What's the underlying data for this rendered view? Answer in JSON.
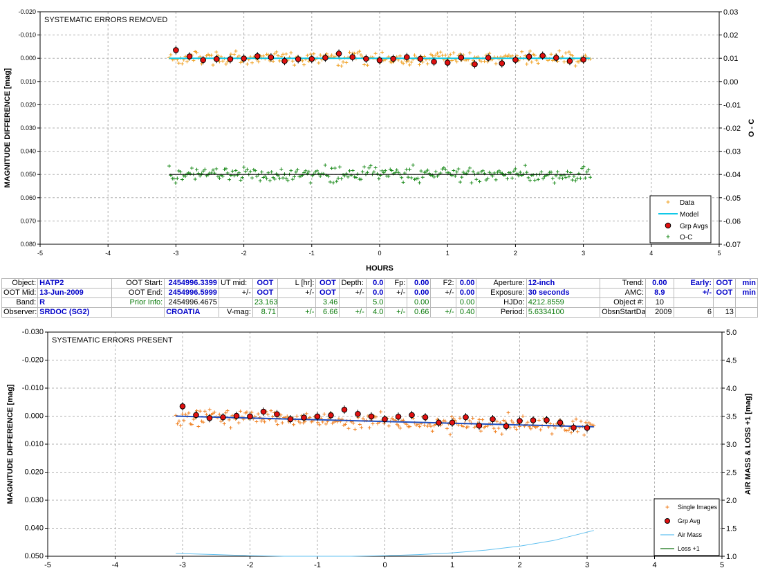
{
  "chart_data": [
    {
      "type": "scatter",
      "title": "SYSTEMATIC ERRORS REMOVED",
      "xlabel": "HOURS",
      "ylabel": "MAGNITUDE DIFFERENCE [mag]",
      "y2label": "O - C",
      "xlim": [
        -5,
        5
      ],
      "ylim": [
        -0.02,
        0.08
      ],
      "y_inverted": true,
      "y2lim": [
        -0.07,
        0.03
      ],
      "x_ticks": [
        "-5",
        "-4",
        "-3",
        "-2",
        "-1",
        "0",
        "1",
        "2",
        "3",
        "4",
        "5"
      ],
      "y_ticks": [
        "-0.020",
        "-0.010",
        "0.000",
        "0.010",
        "0.020",
        "0.030",
        "0.040",
        "0.050",
        "0.060",
        "0.070",
        "0.080"
      ],
      "y2_ticks": [
        "-0.07",
        "-0.06",
        "-0.05",
        "-0.04",
        "-0.03",
        "-0.02",
        "-0.01",
        "0.00",
        "0.01",
        "0.02",
        "0.03"
      ],
      "grid": true,
      "legend_position": "bottom-right",
      "series": [
        {
          "name": "Data",
          "style": "plus",
          "color": "#f0a020",
          "x_range": [
            -3.1,
            3.1
          ],
          "center": 0.0,
          "scatter": 0.003,
          "count": 260
        },
        {
          "name": "Model",
          "style": "line",
          "color": "#10c8e8",
          "x": [
            -3.1,
            3.1
          ],
          "y": [
            0.0,
            0.0
          ]
        },
        {
          "name": "Grp Avgs",
          "style": "dot",
          "color": "#e01010",
          "x": [
            -3.0,
            -2.8,
            -2.6,
            -2.4,
            -2.2,
            -2.0,
            -1.8,
            -1.6,
            -1.4,
            -1.2,
            -1.0,
            -0.8,
            -0.6,
            -0.4,
            -0.2,
            0.0,
            0.2,
            0.4,
            0.6,
            0.8,
            1.0,
            1.2,
            1.4,
            1.6,
            1.8,
            2.0,
            2.2,
            2.4,
            2.6,
            2.8,
            3.0
          ],
          "y": [
            -0.0035,
            -0.0008,
            0.0008,
            0.0003,
            0.0004,
            0.0001,
            -0.0009,
            -0.0004,
            0.0012,
            0.0004,
            0.0003,
            -0.0002,
            -0.002,
            -0.0005,
            0.0002,
            0.0009,
            0.0002,
            -0.0005,
            0.0002,
            0.0015,
            0.0019,
            -0.0003,
            0.0026,
            -0.0002,
            0.0022,
            0.0007,
            -0.0007,
            -0.0011,
            -0.0002,
            0.0012,
            0.0006
          ]
        },
        {
          "name": "O-C",
          "style": "plus",
          "color": "#1a8a1a",
          "x_range": [
            -3.1,
            3.1
          ],
          "center": 0.05,
          "scatter": 0.0032,
          "count": 260
        }
      ],
      "reference_line": {
        "y": 0.05,
        "color": "#000000"
      }
    },
    {
      "type": "scatter",
      "title": "SYSTEMATIC ERRORS PRESENT",
      "xlabel": "",
      "ylabel": "MAGNITUDE DIFFERENCE [mag]",
      "y2label": "AIR MASS & LOSS +1 [mag]",
      "xlim": [
        -5,
        5
      ],
      "ylim": [
        -0.03,
        0.05
      ],
      "y_inverted": true,
      "y2lim": [
        1.0,
        5.0
      ],
      "x_ticks": [
        "-5",
        "-4",
        "-3",
        "-2",
        "-1",
        "0",
        "1",
        "2",
        "3",
        "4",
        "5"
      ],
      "y_ticks": [
        "-0.030",
        "-0.020",
        "-0.010",
        "0.000",
        "0.010",
        "0.020",
        "0.030",
        "0.040",
        "0.050"
      ],
      "y2_ticks": [
        "1.0",
        "1.5",
        "2.0",
        "2.5",
        "3.0",
        "3.5",
        "4.0",
        "4.5",
        "5.0"
      ],
      "grid": true,
      "legend_position": "bottom-right",
      "series": [
        {
          "name": "Single Images",
          "style": "plus",
          "color": "#f08020",
          "x_range": [
            -3.1,
            3.1
          ],
          "trend": [
            0.0,
            0.0038
          ],
          "scatter": 0.0028,
          "count": 260
        },
        {
          "name": "Grp Avg",
          "style": "dot",
          "color": "#e01010",
          "x": [
            -3.0,
            -2.8,
            -2.6,
            -2.4,
            -2.2,
            -2.0,
            -1.8,
            -1.6,
            -1.4,
            -1.2,
            -1.0,
            -0.8,
            -0.6,
            -0.4,
            -0.2,
            0.0,
            0.2,
            0.4,
            0.6,
            0.8,
            1.0,
            1.2,
            1.4,
            1.6,
            1.8,
            2.0,
            2.2,
            2.4,
            2.6,
            2.8,
            3.0
          ],
          "y": [
            -0.0035,
            -0.0004,
            0.0007,
            0.0004,
            -0.0001,
            0.0001,
            -0.0016,
            -0.0007,
            0.0011,
            0.0005,
            0.0001,
            -0.0003,
            -0.0023,
            -0.0008,
            0.0001,
            0.0011,
            0.0002,
            -0.0004,
            0.0004,
            0.0023,
            0.0023,
            0.0004,
            0.0034,
            0.0011,
            0.0036,
            0.0017,
            0.0015,
            0.0014,
            0.0023,
            0.0041,
            0.0042
          ]
        },
        {
          "name": "Air Mass",
          "style": "line",
          "color": "#60c0f0",
          "axis": "y2",
          "x": [
            -3.1,
            -2.5,
            -2.0,
            -1.5,
            -1.0,
            -0.5,
            0.0,
            0.5,
            1.0,
            1.5,
            2.0,
            2.5,
            3.1
          ],
          "y": [
            1.05,
            1.03,
            1.01,
            1.0,
            1.0,
            1.0,
            1.01,
            1.03,
            1.06,
            1.11,
            1.18,
            1.28,
            1.46
          ]
        },
        {
          "name": "Loss +1",
          "style": "line",
          "color": "#107010",
          "axis": "y2"
        }
      ],
      "trend_line": {
        "x": [
          -3.1,
          3.1
        ],
        "y": [
          0.0,
          0.0038
        ],
        "color": "#2050c0"
      }
    }
  ],
  "info": {
    "row1": [
      "Object:",
      "HATP2",
      "OOT Start:",
      "2454996.3399",
      "UT mid:",
      "OOT",
      "L [hr]:",
      "OOT",
      "Depth:",
      "0.0",
      "Fp:",
      "0.00",
      "F2:",
      "0.00",
      "Aperture:",
      "12-inch",
      "Trend:",
      "0.00",
      "Early:",
      "OOT",
      "min"
    ],
    "row2": [
      "OOT Mid:",
      "13-Jun-2009",
      "OOT End:",
      "2454996.5999",
      "+/-",
      "OOT",
      "+/-",
      "OOT",
      "+/-",
      "0.0",
      "+/-",
      "0.00",
      "+/-",
      "0.00",
      "Exposure:",
      "30 seconds",
      "AMC:",
      "8.9",
      "+/-",
      "OOT",
      "min"
    ],
    "row3": [
      "Band:",
      "R",
      "Prior Info:",
      "2454996.4675",
      "",
      "23.163",
      "",
      "3.46",
      "",
      "5.0",
      "",
      "0.00",
      "",
      "0.00",
      "HJDo:",
      "4212.8559",
      "Object #:",
      "10",
      "",
      "",
      ""
    ],
    "row4": [
      "Observer:",
      "SRDOC (SG2)",
      "",
      "CROATIA",
      "V-mag:",
      "8.71",
      "+/-",
      "6.66",
      "+/-",
      "4.0",
      "+/-",
      "0.66",
      "+/-",
      "0.40",
      "Period:",
      "5.6334100",
      "ObsnStartDate:",
      "2009",
      "6",
      "13",
      ""
    ]
  }
}
